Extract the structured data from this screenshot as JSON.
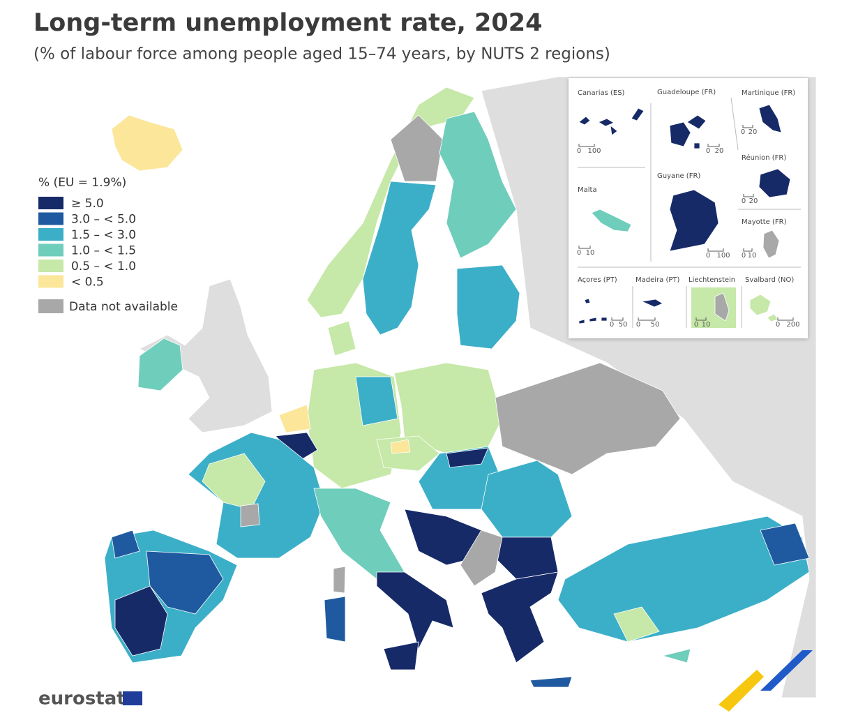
{
  "header": {
    "title": "Long-term unemployment rate, 2024",
    "subtitle": "(% of labour force among people aged 15–74 years, by NUTS 2 regions)"
  },
  "legend": {
    "title": "% (EU = 1.9%)",
    "items": [
      {
        "label": "≥ 5.0",
        "color": "#172a68"
      },
      {
        "label": "3.0 – < 5.0",
        "color": "#1f5aa0"
      },
      {
        "label": "1.5 – < 3.0",
        "color": "#3cafc8"
      },
      {
        "label": "1.0 – < 1.5",
        "color": "#6fcdbb"
      },
      {
        "label": "0.5 – < 1.0",
        "color": "#c6e8a8"
      },
      {
        "label": "< 0.5",
        "color": "#fbe69a"
      }
    ],
    "na": {
      "label": "Data not available",
      "color": "#a8a8a8"
    }
  },
  "insets": [
    {
      "label": "Canarias (ES)",
      "scale": [
        "0",
        "100"
      ]
    },
    {
      "label": "Guadeloupe (FR)",
      "scale": [
        "0",
        "20"
      ]
    },
    {
      "label": "Martinique (FR)",
      "scale": [
        "0",
        "20"
      ]
    },
    {
      "label": "Réunion (FR)",
      "scale": [
        "0",
        "20"
      ]
    },
    {
      "label": "Malta",
      "scale": [
        "0",
        "10"
      ]
    },
    {
      "label": "Guyane (FR)",
      "scale": [
        "0",
        "100"
      ]
    },
    {
      "label": "Mayotte (FR)",
      "scale": [
        "0",
        "10"
      ]
    },
    {
      "label": "Açores (PT)",
      "scale": [
        "0",
        "50"
      ]
    },
    {
      "label": "Madeira (PT)",
      "scale": [
        "0",
        "50"
      ]
    },
    {
      "label": "Liechtenstein",
      "scale": [
        "0",
        "10"
      ]
    },
    {
      "label": "Svalbard (NO)",
      "scale": [
        "0",
        "200"
      ]
    }
  ],
  "footer": {
    "logo": "eurostat"
  }
}
